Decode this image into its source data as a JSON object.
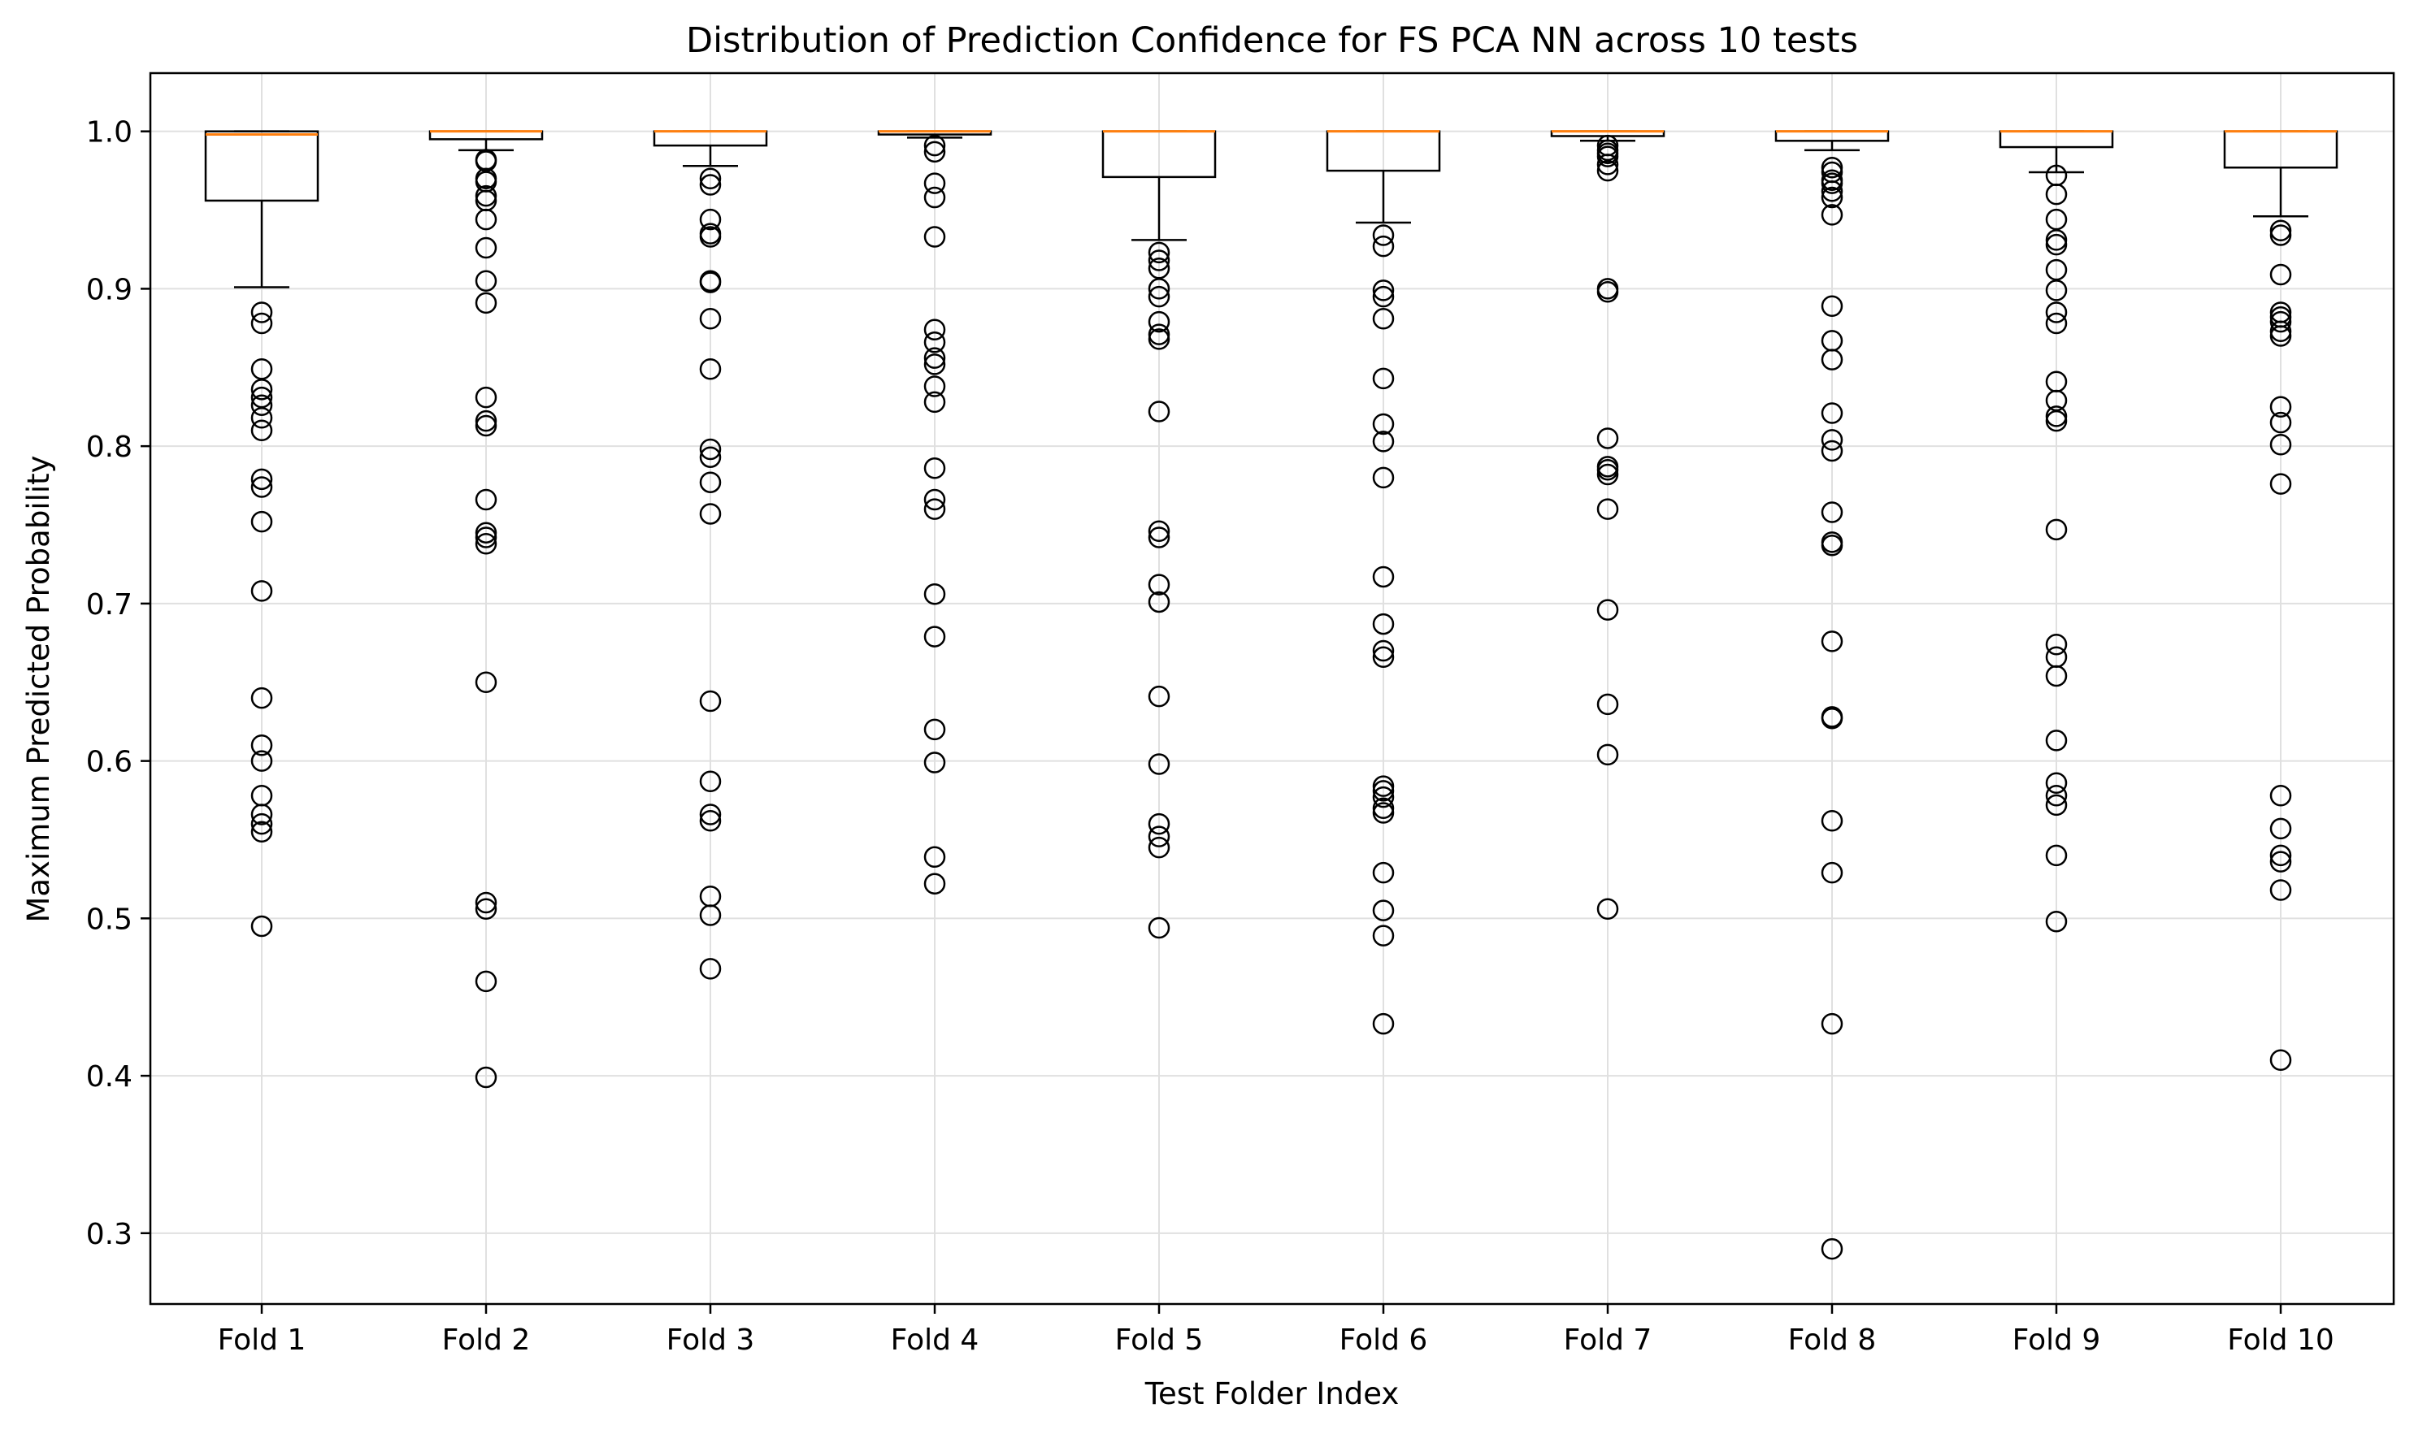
{
  "chart_data": {
    "type": "box",
    "title": "Distribution of Prediction Confidence for FS PCA NN across 10 tests",
    "xlabel": "Test Folder Index",
    "ylabel": "Maximum Predicted Probability",
    "ylim": [
      0.255,
      1.037
    ],
    "yticks": [
      0.3,
      0.4,
      0.5,
      0.6,
      0.7,
      0.8,
      0.9,
      1.0
    ],
    "ytick_labels": [
      "0.3",
      "0.4",
      "0.5",
      "0.6",
      "0.7",
      "0.8",
      "0.9",
      "1.0"
    ],
    "grid": true,
    "categories": [
      "Fold 1",
      "Fold 2",
      "Fold 3",
      "Fold 4",
      "Fold 5",
      "Fold 6",
      "Fold 7",
      "Fold 8",
      "Fold 9",
      "Fold 10"
    ],
    "colors": {
      "box": "#000000",
      "median": "#ff7f0e",
      "grid": "#e0e0e0",
      "outlier": "#000000"
    },
    "boxes": [
      {
        "name": "Fold 1",
        "whisker_low": 0.901,
        "q1": 0.956,
        "median": 0.998,
        "q3": 1.0,
        "whisker_high": 1.0,
        "outliers": [
          0.885,
          0.878,
          0.849,
          0.836,
          0.831,
          0.826,
          0.818,
          0.81,
          0.779,
          0.774,
          0.752,
          0.708,
          0.64,
          0.61,
          0.6,
          0.578,
          0.566,
          0.56,
          0.555,
          0.495
        ]
      },
      {
        "name": "Fold 2",
        "whisker_low": 0.988,
        "q1": 0.995,
        "median": 1.0,
        "q3": 1.0,
        "whisker_high": 1.0,
        "outliers": [
          0.982,
          0.981,
          0.97,
          0.968,
          0.959,
          0.956,
          0.944,
          0.926,
          0.905,
          0.891,
          0.831,
          0.816,
          0.813,
          0.766,
          0.745,
          0.742,
          0.738,
          0.65,
          0.51,
          0.506,
          0.46,
          0.399
        ]
      },
      {
        "name": "Fold 3",
        "whisker_low": 0.978,
        "q1": 0.991,
        "median": 1.0,
        "q3": 1.0,
        "whisker_high": 1.0,
        "outliers": [
          0.97,
          0.966,
          0.944,
          0.935,
          0.933,
          0.905,
          0.904,
          0.881,
          0.849,
          0.798,
          0.793,
          0.777,
          0.757,
          0.638,
          0.587,
          0.566,
          0.562,
          0.514,
          0.502,
          0.468
        ]
      },
      {
        "name": "Fold 4",
        "whisker_low": 0.996,
        "q1": 0.998,
        "median": 1.0,
        "q3": 1.0,
        "whisker_high": 1.0,
        "outliers": [
          0.991,
          0.987,
          0.967,
          0.958,
          0.933,
          0.874,
          0.866,
          0.856,
          0.852,
          0.838,
          0.828,
          0.786,
          0.766,
          0.76,
          0.706,
          0.679,
          0.62,
          0.599,
          0.539,
          0.522
        ]
      },
      {
        "name": "Fold 5",
        "whisker_low": 0.931,
        "q1": 0.971,
        "median": 1.0,
        "q3": 1.0,
        "whisker_high": 1.0,
        "outliers": [
          0.923,
          0.918,
          0.913,
          0.9,
          0.895,
          0.879,
          0.871,
          0.868,
          0.822,
          0.746,
          0.742,
          0.712,
          0.701,
          0.641,
          0.598,
          0.56,
          0.552,
          0.545,
          0.494
        ]
      },
      {
        "name": "Fold 6",
        "whisker_low": 0.942,
        "q1": 0.975,
        "median": 1.0,
        "q3": 1.0,
        "whisker_high": 1.0,
        "outliers": [
          0.934,
          0.927,
          0.899,
          0.895,
          0.881,
          0.843,
          0.814,
          0.803,
          0.78,
          0.717,
          0.687,
          0.67,
          0.666,
          0.584,
          0.581,
          0.577,
          0.57,
          0.567,
          0.529,
          0.505,
          0.489,
          0.433
        ]
      },
      {
        "name": "Fold 7",
        "whisker_low": 0.994,
        "q1": 0.997,
        "median": 1.0,
        "q3": 1.0,
        "whisker_high": 1.0,
        "outliers": [
          0.991,
          0.988,
          0.986,
          0.984,
          0.979,
          0.975,
          0.9,
          0.898,
          0.805,
          0.787,
          0.785,
          0.782,
          0.76,
          0.696,
          0.636,
          0.604,
          0.506
        ]
      },
      {
        "name": "Fold 8",
        "whisker_low": 0.988,
        "q1": 0.994,
        "median": 1.0,
        "q3": 1.0,
        "whisker_high": 1.0,
        "outliers": [
          0.977,
          0.974,
          0.969,
          0.967,
          0.962,
          0.958,
          0.947,
          0.889,
          0.867,
          0.855,
          0.821,
          0.804,
          0.797,
          0.758,
          0.739,
          0.737,
          0.676,
          0.628,
          0.627,
          0.562,
          0.529,
          0.433,
          0.29
        ]
      },
      {
        "name": "Fold 9",
        "whisker_low": 0.974,
        "q1": 0.99,
        "median": 1.0,
        "q3": 1.0,
        "whisker_high": 1.0,
        "outliers": [
          0.972,
          0.96,
          0.944,
          0.931,
          0.928,
          0.912,
          0.899,
          0.885,
          0.878,
          0.841,
          0.829,
          0.819,
          0.816,
          0.747,
          0.674,
          0.666,
          0.654,
          0.613,
          0.586,
          0.578,
          0.572,
          0.54,
          0.498
        ]
      },
      {
        "name": "Fold 10",
        "whisker_low": 0.946,
        "q1": 0.977,
        "median": 1.0,
        "q3": 1.0,
        "whisker_high": 1.0,
        "outliers": [
          0.937,
          0.934,
          0.909,
          0.885,
          0.882,
          0.879,
          0.873,
          0.87,
          0.825,
          0.815,
          0.801,
          0.776,
          0.578,
          0.557,
          0.54,
          0.536,
          0.518,
          0.41
        ]
      }
    ]
  }
}
